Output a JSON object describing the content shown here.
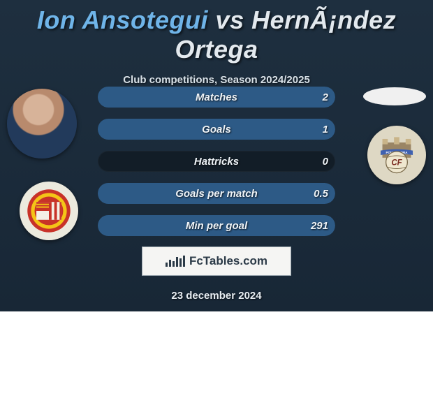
{
  "title": {
    "prefix": "Ion Ansotegui ",
    "vs": "vs",
    "suffix": " HernÃ¡ndez Ortega",
    "prefix_color": "#6fb4e8",
    "vs_color": "#e3e9ee",
    "suffix_color": "#e3e9ee",
    "fontsize": 36
  },
  "subtitle": "Club competitions, Season 2024/2025",
  "colors": {
    "card_bg_top": "#1e2f3f",
    "card_bg_bottom": "#182736",
    "row_bg": "#121d27",
    "text": "#eef3f7",
    "p1_fill": "#2d5a86",
    "p2_fill": "#2d5a86"
  },
  "stats": [
    {
      "label": "Matches",
      "v1": "",
      "v2": "2",
      "w1_pct": 0,
      "w2_pct": 100
    },
    {
      "label": "Goals",
      "v1": "",
      "v2": "1",
      "w1_pct": 0,
      "w2_pct": 100
    },
    {
      "label": "Hattricks",
      "v1": "",
      "v2": "0",
      "w1_pct": 0,
      "w2_pct": 0
    },
    {
      "label": "Goals per match",
      "v1": "",
      "v2": "0.5",
      "w1_pct": 0,
      "w2_pct": 100
    },
    {
      "label": "Min per goal",
      "v1": "",
      "v2": "291",
      "w1_pct": 0,
      "w2_pct": 100
    }
  ],
  "footer_brand": "FcTables.com",
  "date": "23 december 2024",
  "logo_bar_heights": [
    6,
    10,
    8,
    14,
    12,
    16
  ],
  "badge1": {
    "outer": "#c83228",
    "mid": "#f4c417",
    "inner": "#c83228",
    "stripes": "#c83228"
  },
  "badge2": {
    "wall": "#9a8565",
    "towers": "#c9b489",
    "banner": "#3f61b0",
    "banner_text": "PONTEVEDRA",
    "ball": "#efe7cf",
    "ball_text": "CF"
  }
}
